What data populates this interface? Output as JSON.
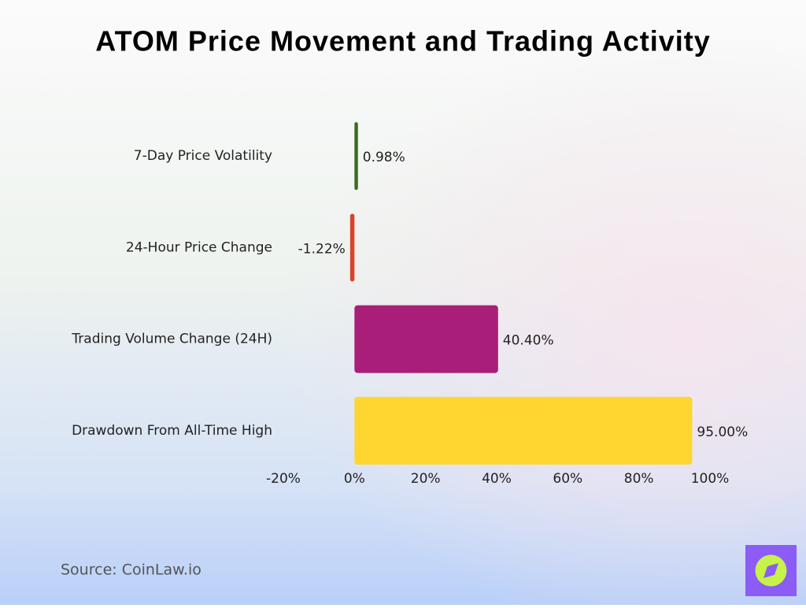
{
  "chart_data": {
    "type": "bar",
    "orientation": "horizontal",
    "title": "ATOM Price Movement and Trading Activity",
    "categories": [
      "7-Day Price Volatility",
      "24-Hour Price Change",
      "Trading Volume Change (24H)",
      "Drawdown From All-Time High"
    ],
    "values": [
      0.98,
      -1.22,
      40.4,
      95
    ],
    "value_labels": [
      "0.98%",
      "-1.22%",
      "40.40%",
      "95.00%"
    ],
    "colors": [
      "#3b6b1f",
      "#d8432c",
      "#a91e78",
      "#ffd530"
    ],
    "xlim": [
      -20,
      100
    ],
    "xticks": [
      {
        "value": -20,
        "label": "-20%"
      },
      {
        "value": 0,
        "label": "0%"
      },
      {
        "value": 20,
        "label": "20%"
      },
      {
        "value": 40,
        "label": "40%"
      },
      {
        "value": 60,
        "label": "60%"
      },
      {
        "value": 80,
        "label": "80%"
      },
      {
        "value": 100,
        "label": "100%"
      }
    ],
    "grid": false,
    "source": "Source: CoinLaw.io"
  }
}
